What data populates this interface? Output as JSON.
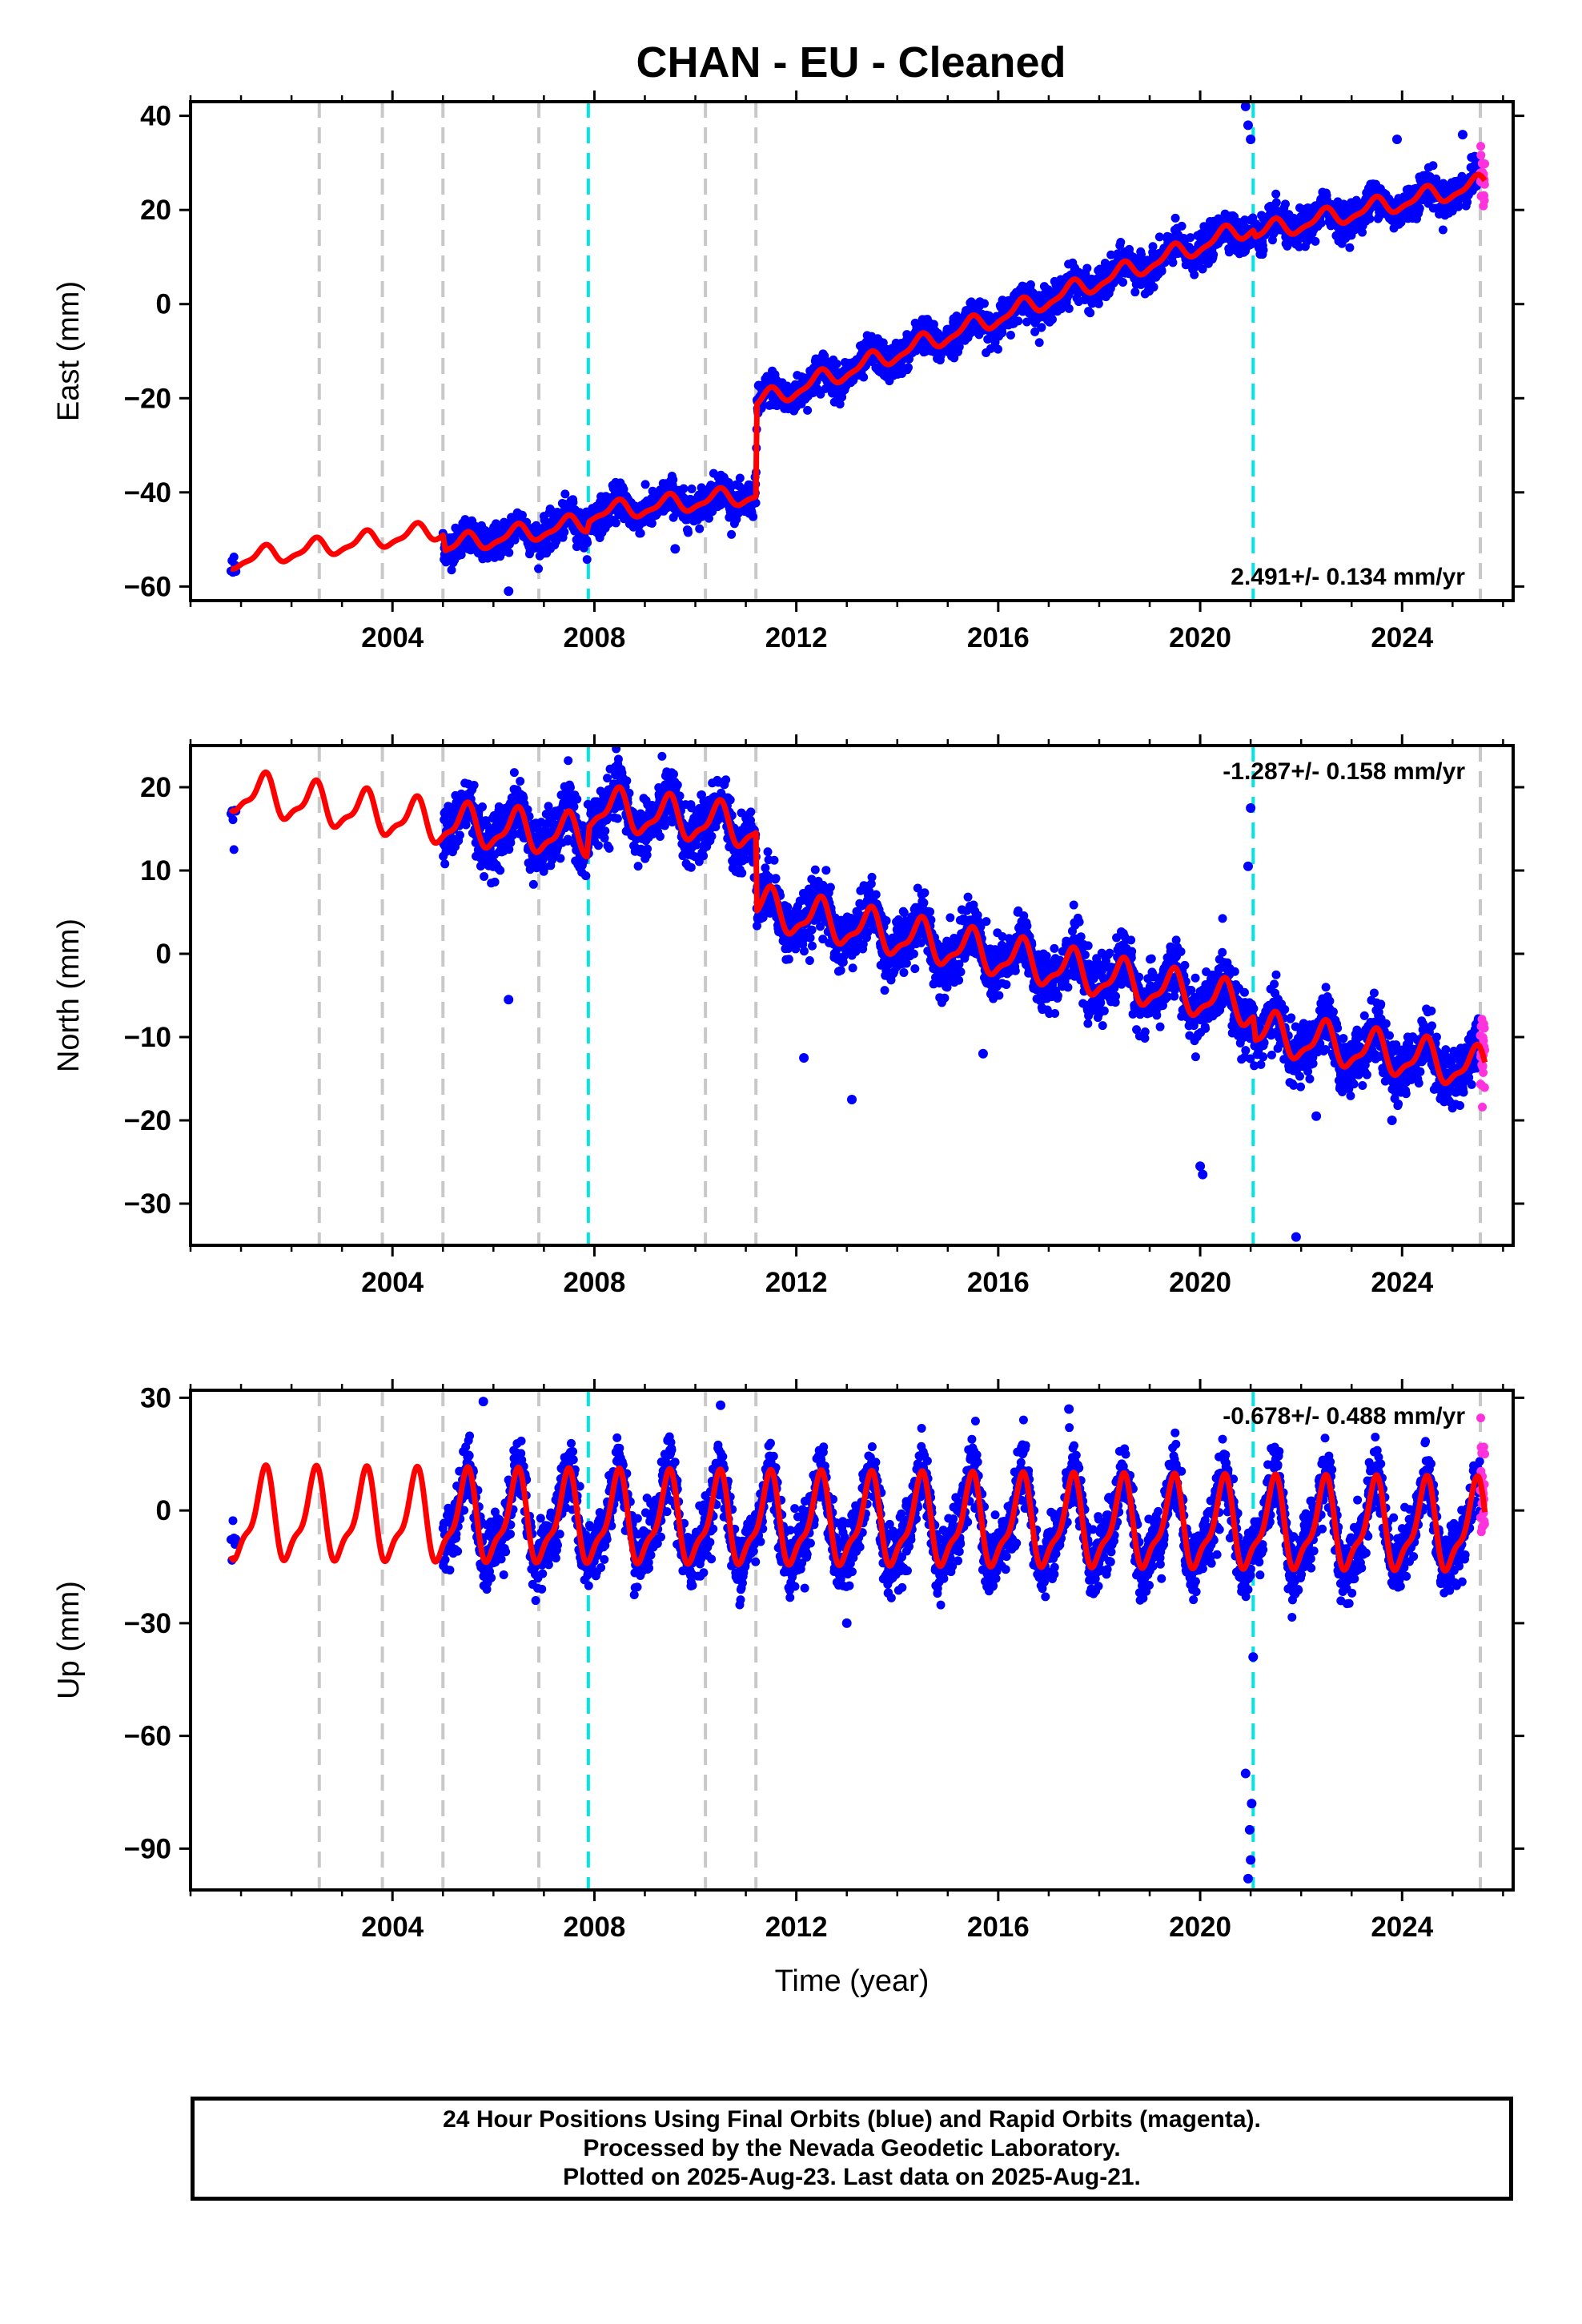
{
  "title": "CHAN  - EU - Cleaned",
  "colors": {
    "final_orbits": "#0000ff",
    "rapid_orbits": "#ff33dd",
    "model_fit": "#ff0000",
    "equipment_change": "#c8c8c8",
    "earthquake": "#00e5e5"
  },
  "caption": {
    "line1": "24 Hour Positions Using Final Orbits (blue) and Rapid Orbits (magenta).",
    "line2": "Processed by the Nevada Geodetic Laboratory.",
    "line3": "Plotted on 2025-Aug-23. Last data on 2025-Aug-21."
  },
  "chart_data": [
    {
      "type": "scatter",
      "component": "east",
      "ylabel": "East (mm)",
      "xlabel": "",
      "rate_text": "2.491+/- 0.134 mm/yr",
      "rate_position": "bottom-right",
      "xlim": [
        2000.0,
        2026.2
      ],
      "ylim": [
        -63,
        43
      ],
      "xticks": [
        2004,
        2008,
        2012,
        2016,
        2020,
        2024
      ],
      "xtick_labels": [
        "2004",
        "2008",
        "2012",
        "2016",
        "2020",
        "2024"
      ],
      "yticks": [
        -60,
        -40,
        -20,
        0,
        20,
        40
      ],
      "ytick_labels": [
        "−60",
        "−40",
        "−20",
        "0",
        "20",
        "40"
      ],
      "grid": false,
      "data_start": 2000.8,
      "final_orbits_range": [
        2005.0,
        2025.55
      ],
      "rapid_orbits_range": [
        2025.55,
        2025.64
      ],
      "model_fit": {
        "breakpoints": [
          {
            "x": 2000.8,
            "y": -54.5
          },
          {
            "x": 2005.0,
            "y": -48.0
          },
          {
            "x": 2005.05,
            "y": -51.5
          },
          {
            "x": 2007.85,
            "y": -46.5
          },
          {
            "x": 2007.9,
            "y": -44.5
          },
          {
            "x": 2011.2,
            "y": -40.5
          },
          {
            "x": 2011.22,
            "y": -21.0
          },
          {
            "x": 2021.05,
            "y": 16.5
          },
          {
            "x": 2021.1,
            "y": 15.0
          },
          {
            "x": 2025.64,
            "y": 25.5
          }
        ],
        "seasonal_amplitude": 1.8
      },
      "equipment_changes": [
        2002.55,
        2003.8,
        2005.0,
        2006.9,
        2010.2,
        2011.2,
        2025.55
      ],
      "earthquakes": [
        2007.88,
        2021.05
      ],
      "outliers": [
        {
          "x": 2006.3,
          "y": -61
        },
        {
          "x": 2020.9,
          "y": 42
        },
        {
          "x": 2020.95,
          "y": 38
        },
        {
          "x": 2021.0,
          "y": 35
        },
        {
          "x": 2023.9,
          "y": 35
        },
        {
          "x": 2025.2,
          "y": 36
        },
        {
          "x": 2009.6,
          "y": -52
        }
      ]
    },
    {
      "type": "scatter",
      "component": "north",
      "ylabel": "North (mm)",
      "xlabel": "",
      "rate_text": "-1.287+/- 0.158 mm/yr",
      "rate_position": "top-right",
      "xlim": [
        2000.0,
        2026.2
      ],
      "ylim": [
        -35,
        25
      ],
      "xticks": [
        2004,
        2008,
        2012,
        2016,
        2020,
        2024
      ],
      "xtick_labels": [
        "2004",
        "2008",
        "2012",
        "2016",
        "2020",
        "2024"
      ],
      "yticks": [
        -30,
        -20,
        -10,
        0,
        10,
        20
      ],
      "ytick_labels": [
        "−30",
        "−20",
        "−10",
        "0",
        "10",
        "20"
      ],
      "grid": false,
      "data_start": 2000.8,
      "final_orbits_range": [
        2005.0,
        2025.55
      ],
      "rapid_orbits_range": [
        2025.55,
        2025.64
      ],
      "model_fit": {
        "breakpoints": [
          {
            "x": 2000.8,
            "y": 19.5
          },
          {
            "x": 2005.0,
            "y": 15.5
          },
          {
            "x": 2007.85,
            "y": 14.0
          },
          {
            "x": 2007.9,
            "y": 17.5
          },
          {
            "x": 2011.2,
            "y": 15.0
          },
          {
            "x": 2011.22,
            "y": 5.5
          },
          {
            "x": 2021.05,
            "y": -6.5
          },
          {
            "x": 2021.1,
            "y": -9.5
          },
          {
            "x": 2025.64,
            "y": -14.0
          }
        ],
        "seasonal_amplitude": 2.3
      },
      "equipment_changes": [
        2002.55,
        2003.8,
        2005.0,
        2006.9,
        2010.2,
        2011.2,
        2025.55
      ],
      "earthquakes": [
        2007.88,
        2021.05
      ],
      "outliers": [
        {
          "x": 2006.3,
          "y": -5.5
        },
        {
          "x": 2013.1,
          "y": -17.5
        },
        {
          "x": 2021.0,
          "y": 17.5
        },
        {
          "x": 2020.95,
          "y": 10.5
        },
        {
          "x": 2020.0,
          "y": -25.5
        },
        {
          "x": 2020.05,
          "y": -26.5
        },
        {
          "x": 2021.9,
          "y": -34
        },
        {
          "x": 2012.15,
          "y": -12.5
        },
        {
          "x": 2015.7,
          "y": -12.0
        },
        {
          "x": 2022.3,
          "y": -19.5
        },
        {
          "x": 2023.8,
          "y": -20
        }
      ]
    },
    {
      "type": "scatter",
      "component": "up",
      "ylabel": "Up (mm)",
      "xlabel": "Time (year)",
      "rate_text": "-0.678+/- 0.488 mm/yr",
      "rate_position": "top-right",
      "xlim": [
        2000.0,
        2026.2
      ],
      "ylim": [
        -101,
        32
      ],
      "xticks": [
        2004,
        2008,
        2012,
        2016,
        2020,
        2024
      ],
      "xtick_labels": [
        "2004",
        "2008",
        "2012",
        "2016",
        "2020",
        "2024"
      ],
      "yticks": [
        -90,
        -60,
        -30,
        0,
        30
      ],
      "ytick_labels": [
        "−90",
        "−60",
        "−30",
        "0",
        "30"
      ],
      "grid": false,
      "data_start": 2000.8,
      "final_orbits_range": [
        2005.0,
        2025.55
      ],
      "rapid_orbits_range": [
        2025.55,
        2025.64
      ],
      "model_fit": {
        "breakpoints": [
          {
            "x": 2000.8,
            "y": -2
          },
          {
            "x": 2025.64,
            "y": -5
          }
        ],
        "seasonal_amplitude": 11.0
      },
      "equipment_changes": [
        2002.55,
        2003.8,
        2005.0,
        2006.9,
        2010.2,
        2011.2,
        2025.55
      ],
      "earthquakes": [
        2007.88,
        2021.05
      ],
      "outliers": [
        {
          "x": 2020.95,
          "y": -98
        },
        {
          "x": 2021.0,
          "y": -93
        },
        {
          "x": 2020.98,
          "y": -85
        },
        {
          "x": 2021.02,
          "y": -78
        },
        {
          "x": 2020.9,
          "y": -70
        },
        {
          "x": 2021.05,
          "y": -39
        },
        {
          "x": 2005.8,
          "y": 29
        },
        {
          "x": 2010.5,
          "y": 28
        },
        {
          "x": 2017.4,
          "y": 27
        },
        {
          "x": 2013.0,
          "y": -30
        }
      ]
    }
  ]
}
